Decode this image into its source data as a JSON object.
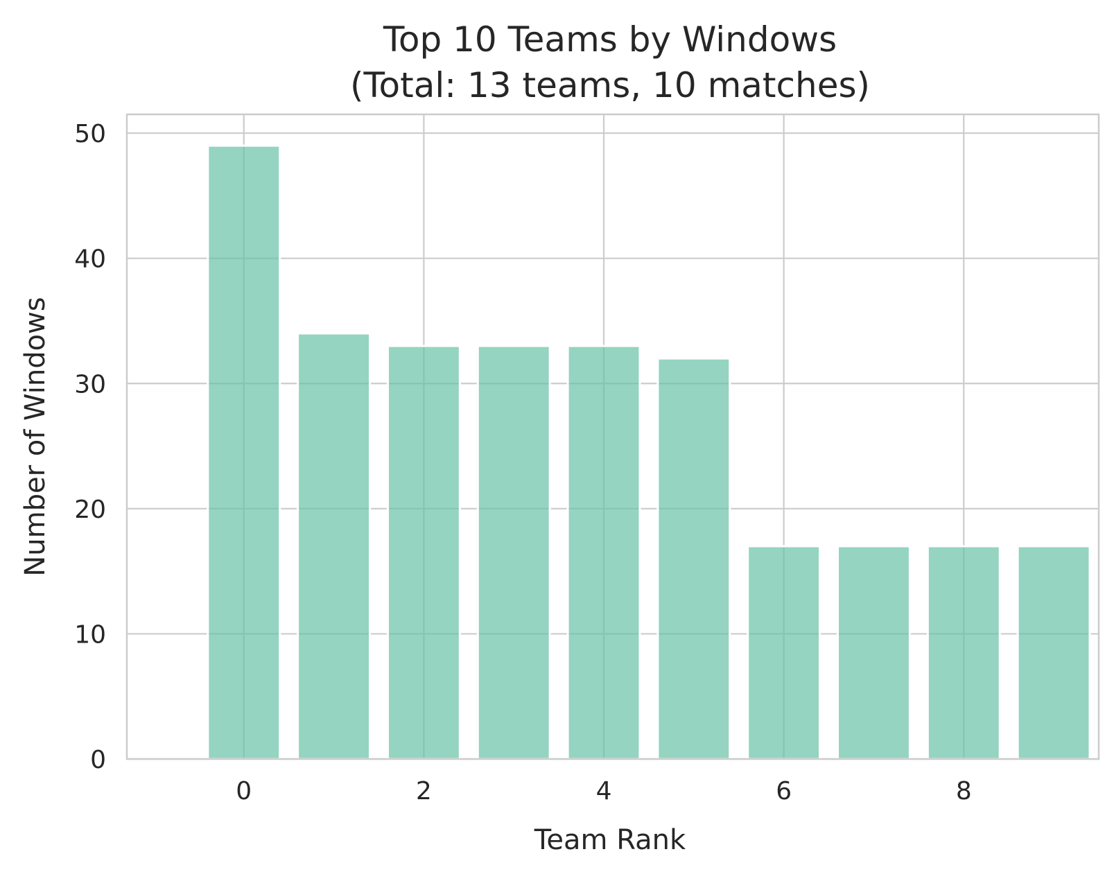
{
  "chart_data": {
    "type": "bar",
    "title": "Top 10 Teams by Windows",
    "subtitle": "(Total: 13 teams, 10 matches)",
    "xlabel": "Team Rank",
    "ylabel": "Number of Windows",
    "x": [
      0,
      1,
      2,
      3,
      4,
      5,
      6,
      7,
      8,
      9
    ],
    "values": [
      49,
      34,
      33,
      33,
      33,
      32,
      17,
      17,
      17,
      17
    ],
    "xlim": [
      -1.3,
      9.5
    ],
    "ylim": [
      0,
      51.5
    ],
    "xticks": [
      0,
      2,
      4,
      6,
      8
    ],
    "xtick_labels": [
      "0",
      "2",
      "4",
      "6",
      "8"
    ],
    "yticks": [
      0,
      10,
      20,
      30,
      40,
      50
    ],
    "ytick_labels": [
      "0",
      "10",
      "20",
      "30",
      "40",
      "50"
    ],
    "grid": true,
    "bar_color": "#66c2a5",
    "bar_opacity": 0.7,
    "grid_color": "#cccccc",
    "spine_color": "#cccccc",
    "text_color": "#262626"
  }
}
